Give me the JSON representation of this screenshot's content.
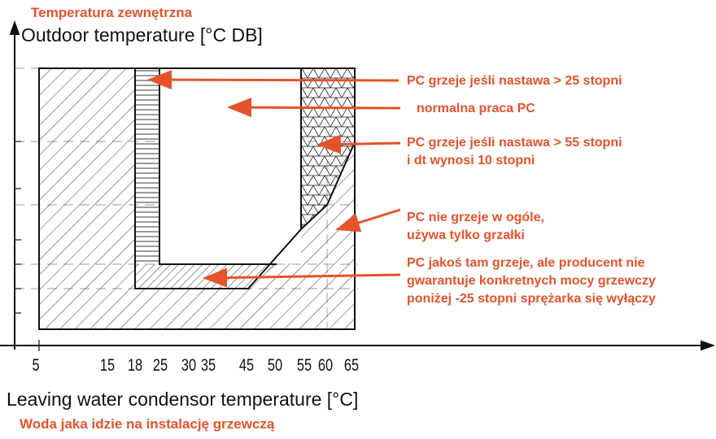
{
  "chart_data": {
    "type": "diagram",
    "x_unit": "°C",
    "x_ticks": [
      "5",
      "15",
      "18",
      "25",
      "30",
      "35",
      "45",
      "50",
      "55",
      "60",
      "65"
    ],
    "y_axis": {
      "label_pl": "Temperatura zewnętrzna",
      "label_en": "Outdoor temperature [°C DB]"
    },
    "x_axis": {
      "label_en": "Leaving water condensor temperature [°C]",
      "label_pl": "Woda jaka idzie na instalację grzewczą"
    },
    "regions": [
      {
        "name": "heat-pump-heats-if-setpoint-over-25",
        "pattern": "horizontal-lines"
      },
      {
        "name": "normal-operation",
        "pattern": "none"
      },
      {
        "name": "heats-if-setpoint-over-55",
        "pattern": "crosshatch-triangles"
      },
      {
        "name": "heater-only",
        "pattern": "diagonal-hatch"
      },
      {
        "name": "low-temp-no-guarantee",
        "pattern": "dense-diagonal"
      }
    ],
    "colors": {
      "annotation": "#e5522b",
      "frame": "#111111",
      "grid": "#7a7a7a"
    }
  },
  "annotations": {
    "a1": "PC grzeje jeśli nastawa > 25 stopni",
    "a2": "normalna praca PC",
    "a3_line1": "PC grzeje jeśli nastawa > 55 stopni",
    "a3_line2": "i dt wynosi 10 stopni",
    "a4_line1": "PC nie grzeje w ogóle,",
    "a4_line2": "używa tylko grzałki",
    "a5_line1": "PC jakoś tam  grzeje, ale producent nie",
    "a5_line2": "gwarantuje konkretnych mocy grzewczy",
    "a5_line3": "poniżej -25 stopni sprężarka się wyłączy"
  }
}
